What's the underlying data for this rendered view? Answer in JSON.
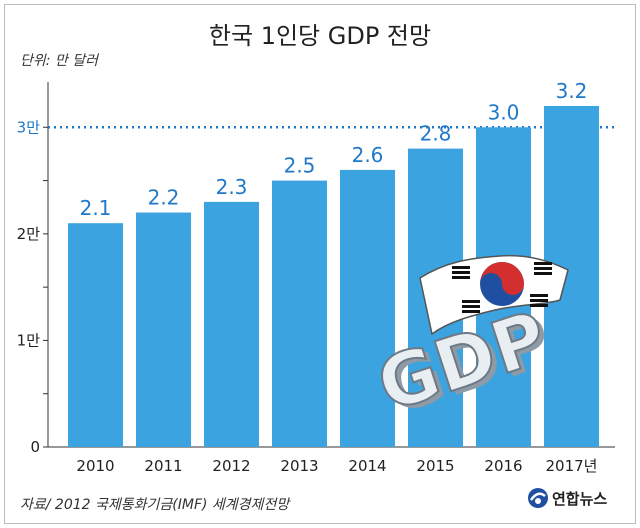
{
  "title": "한국 1인당 GDP 전망",
  "unit_label": "단위: 만 달러",
  "source": "자료/ 2012 국제통화기금(IMF) 세계경제전망",
  "logo_text": "연합뉴스",
  "colors": {
    "bar": "#3ba3e0",
    "value_label": "#1f78c8",
    "guideline": "#1f78c8",
    "background": "#ffffff"
  },
  "chart_data": {
    "type": "bar",
    "categories": [
      "2010",
      "2011",
      "2012",
      "2013",
      "2014",
      "2015",
      "2016",
      "2017년"
    ],
    "values": [
      2.1,
      2.2,
      2.3,
      2.5,
      2.6,
      2.8,
      3.0,
      3.2
    ],
    "value_labels": [
      "2.1",
      "2.2",
      "2.3",
      "2.5",
      "2.6",
      "2.8",
      "3.0",
      "3.2"
    ],
    "ylim": [
      0,
      3.5
    ],
    "yticks": [
      0,
      0.5,
      1,
      1.5,
      2,
      2.5,
      3
    ],
    "ytick_labels": [
      "0",
      "",
      "1만",
      "",
      "2만",
      "",
      "3만"
    ],
    "reference_line": {
      "value": 3,
      "label": "3만",
      "style": "dotted"
    },
    "grid": false,
    "legend": "none"
  },
  "illustration": {
    "flag": "taegukgi",
    "text_3d": "GDP"
  }
}
